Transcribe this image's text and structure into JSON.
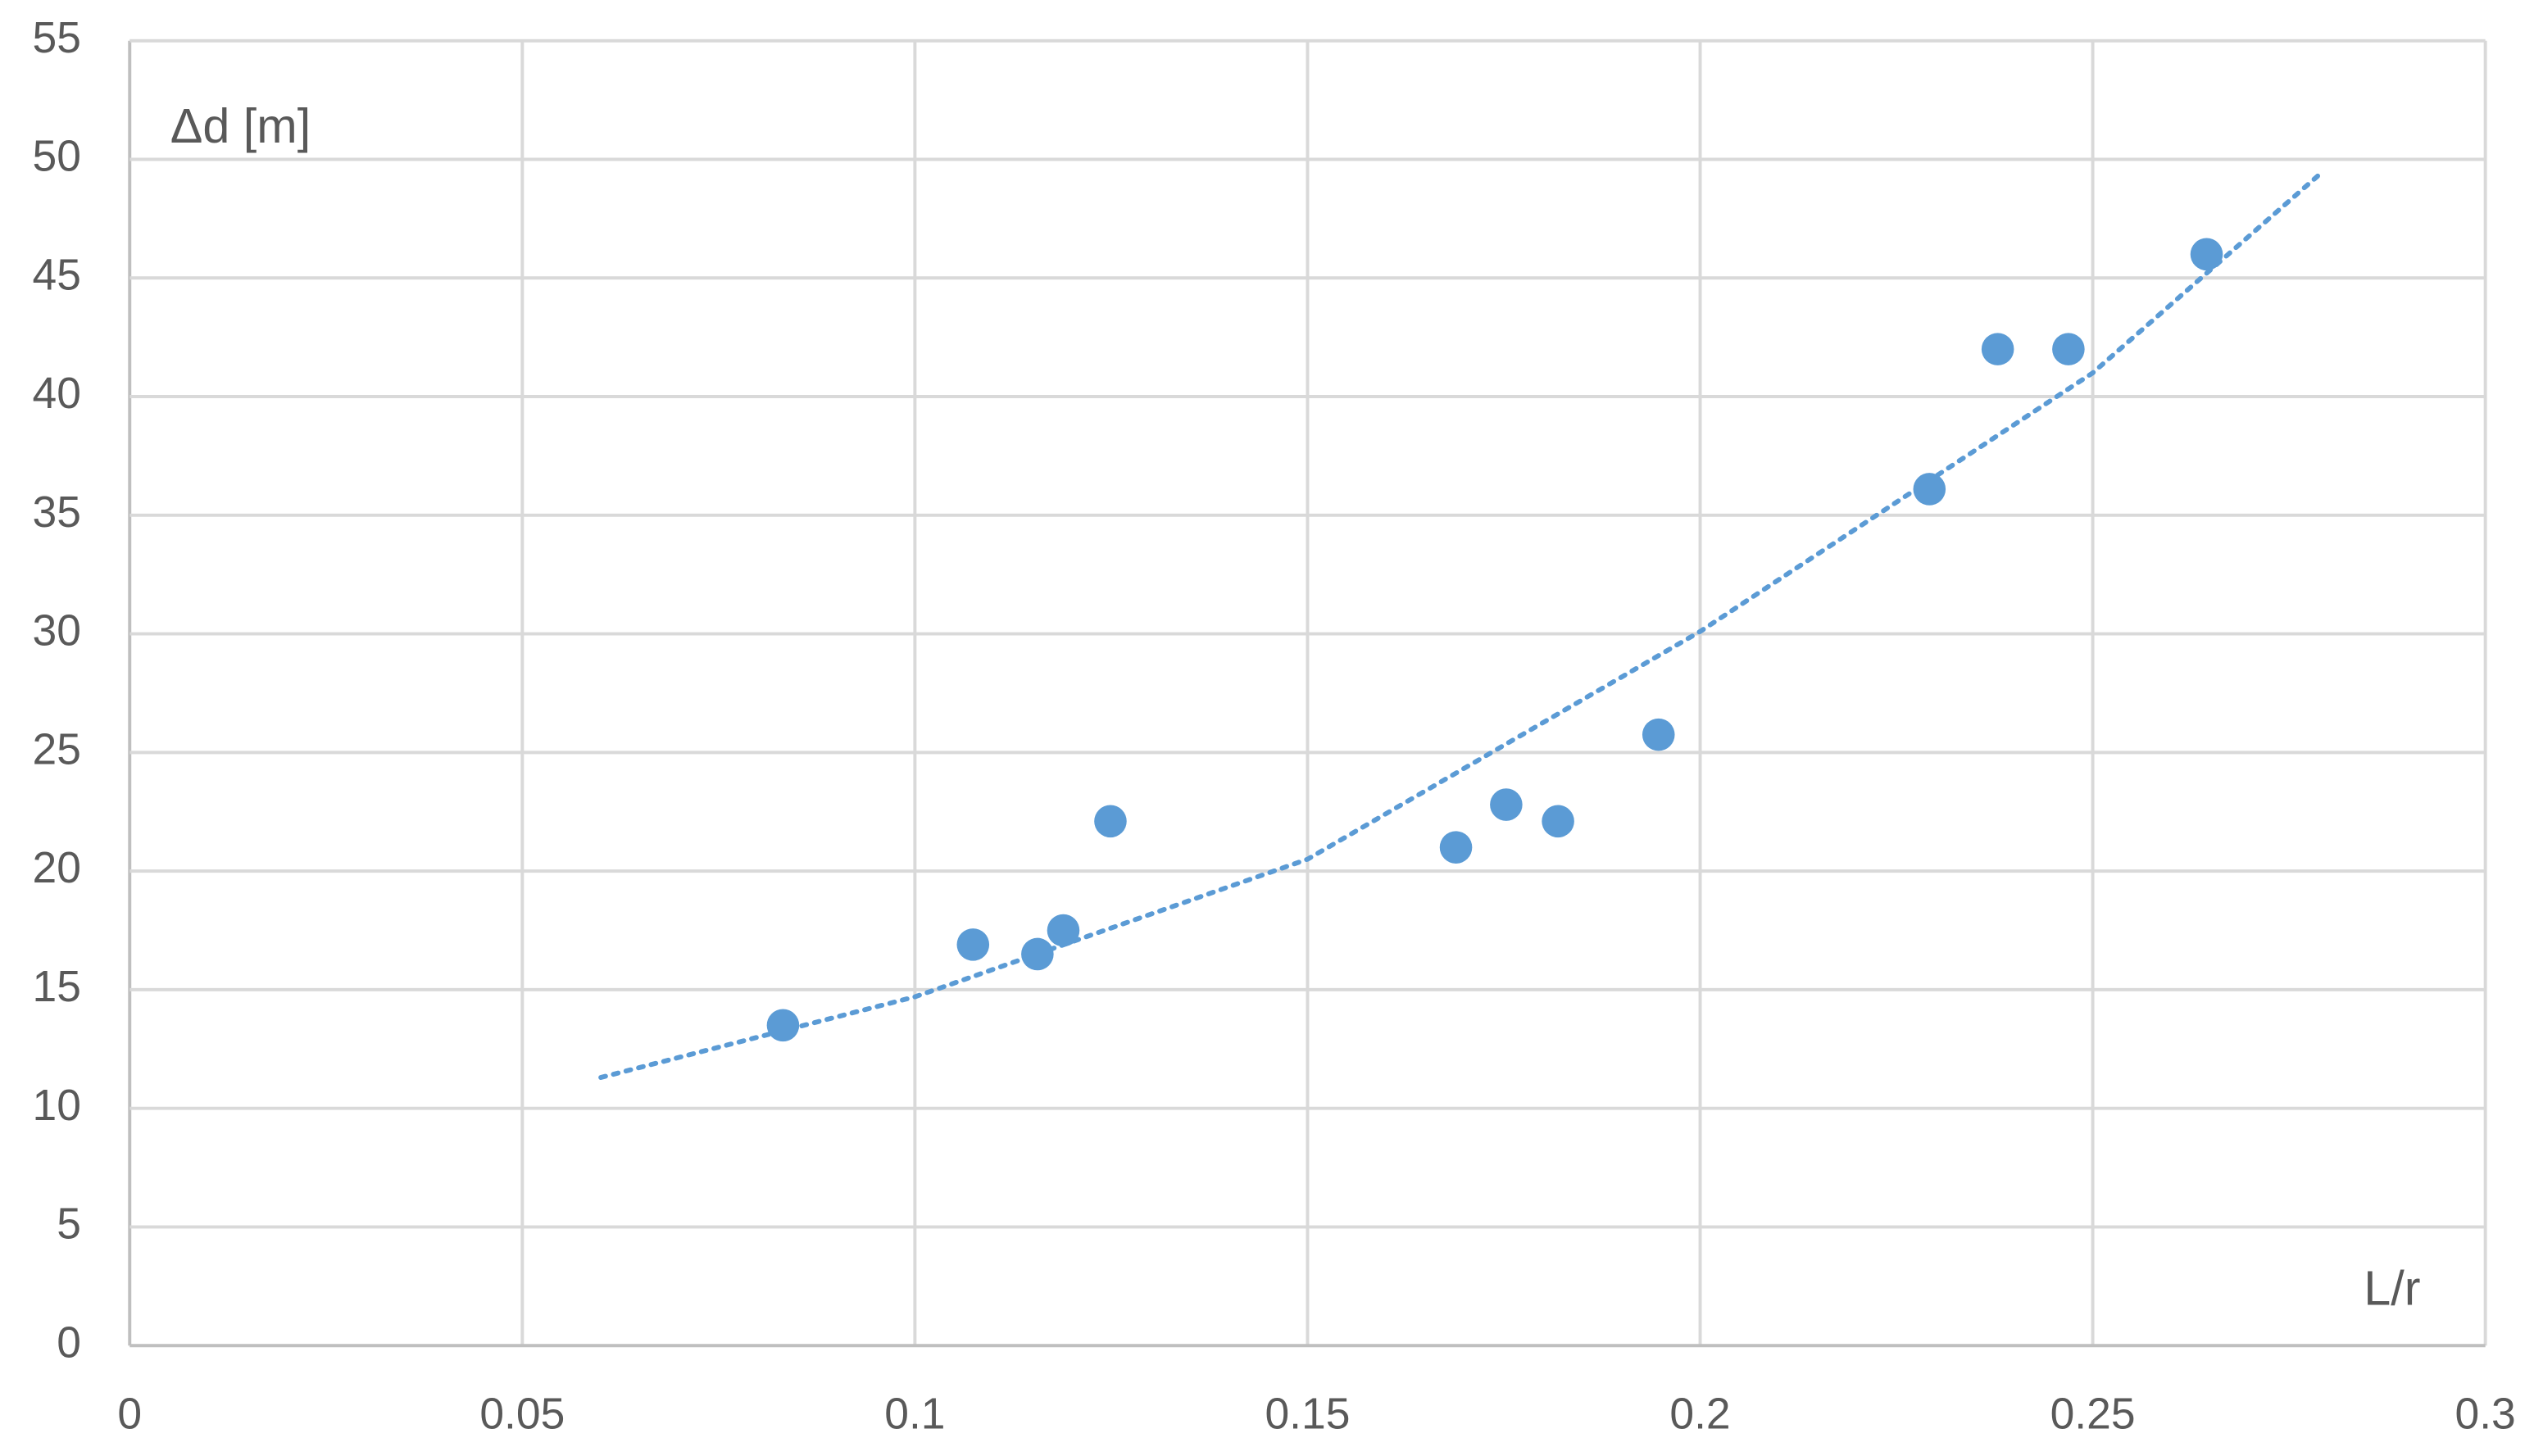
{
  "chart_data": {
    "type": "scatter",
    "x_label": "L/r",
    "y_label": "Δd [m]",
    "series": [
      {
        "color": "#5b9bd5",
        "x": [
          0.0832,
          0.1074,
          0.1156,
          0.1189,
          0.1249,
          0.1689,
          0.1753,
          0.1819,
          0.1947,
          0.2292,
          0.2379,
          0.2469,
          0.2645
        ],
        "values": [
          13.5,
          16.9,
          16.5,
          17.5,
          22.1,
          21.0,
          22.8,
          22.1,
          25.75,
          36.1,
          42.0,
          42.0,
          46.0
        ]
      }
    ],
    "trendline": {
      "color": "#5b9bd5",
      "style": "dotted",
      "x": [
        0.06,
        0.1,
        0.15,
        0.2,
        0.25,
        0.279
      ],
      "values": [
        11.3,
        14.7,
        20.5,
        30.1,
        41.0,
        49.4
      ]
    },
    "xlim": [
      0,
      0.3
    ],
    "ylim": [
      0,
      55
    ],
    "xticks": [
      0,
      0.05,
      0.1,
      0.15,
      0.2,
      0.25,
      0.3
    ],
    "yticks": [
      0,
      5,
      10,
      15,
      20,
      25,
      30,
      35,
      40,
      45,
      50,
      55
    ],
    "grid": true
  }
}
